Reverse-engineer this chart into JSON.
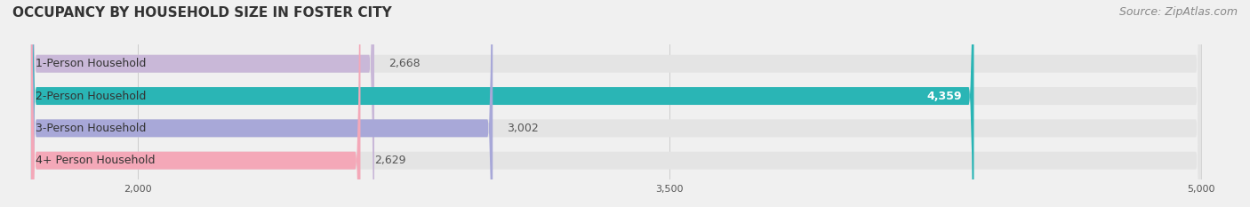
{
  "title": "OCCUPANCY BY HOUSEHOLD SIZE IN FOSTER CITY",
  "source": "Source: ZipAtlas.com",
  "categories": [
    "1-Person Household",
    "2-Person Household",
    "3-Person Household",
    "4+ Person Household"
  ],
  "values": [
    2668,
    4359,
    3002,
    2629
  ],
  "bar_colors": [
    "#c9b8d8",
    "#2ab5b5",
    "#a8a8d8",
    "#f4a8b8"
  ],
  "bar_labels": [
    "2,668",
    "4,359",
    "3,002",
    "2,629"
  ],
  "label_colors": [
    "#555555",
    "#ffffff",
    "#555555",
    "#555555"
  ],
  "xmin": 1700,
  "xmax": 5000,
  "xticks": [
    2000,
    3500,
    5000
  ],
  "background_color": "#f0f0f0",
  "bar_bg_color": "#e4e4e4",
  "title_fontsize": 11,
  "source_fontsize": 9,
  "bar_height": 0.55,
  "bar_label_fontsize": 9,
  "category_fontsize": 9
}
